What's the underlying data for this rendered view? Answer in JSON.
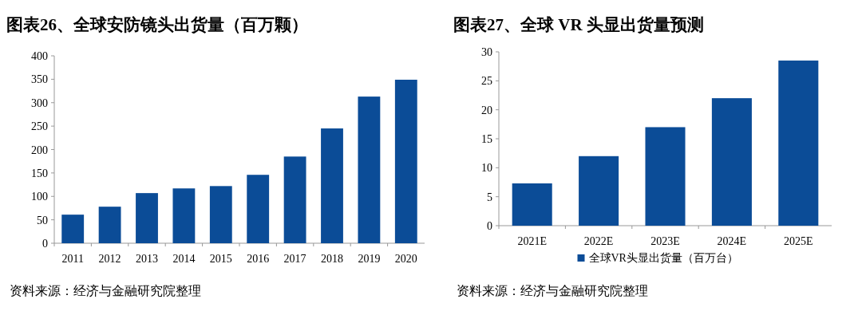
{
  "chart_data": [
    {
      "type": "bar",
      "title": "图表26、全球安防镜头出货量（百万颗）",
      "categories": [
        "2011",
        "2012",
        "2013",
        "2014",
        "2015",
        "2016",
        "2017",
        "2018",
        "2019",
        "2020"
      ],
      "series": [
        {
          "color": "#0b4c97",
          "values": [
            61,
            78,
            107,
            117,
            122,
            146,
            185,
            245,
            313,
            349
          ]
        }
      ],
      "ylim": [
        0,
        400
      ],
      "yticks": [
        0,
        50,
        100,
        150,
        200,
        250,
        300,
        350,
        400
      ],
      "grid": false,
      "legend": false,
      "annotations": [
        "资料来源：经济与金融研究院整理"
      ]
    },
    {
      "type": "bar",
      "title": "图表27、全球 VR 头显出货量预测",
      "categories": [
        "2021E",
        "2022E",
        "2023E",
        "2024E",
        "2025E"
      ],
      "series": [
        {
          "name": "全球VR头显出货量（百万台）",
          "color": "#0b4c97",
          "values": [
            7.3,
            12,
            17,
            22,
            28.5
          ]
        }
      ],
      "ylim": [
        0,
        30
      ],
      "yticks": [
        0,
        5,
        10,
        15,
        20,
        25,
        30
      ],
      "grid": false,
      "legend": "bottom",
      "annotations": [
        "资料来源：经济与金融研究院整理"
      ]
    }
  ]
}
